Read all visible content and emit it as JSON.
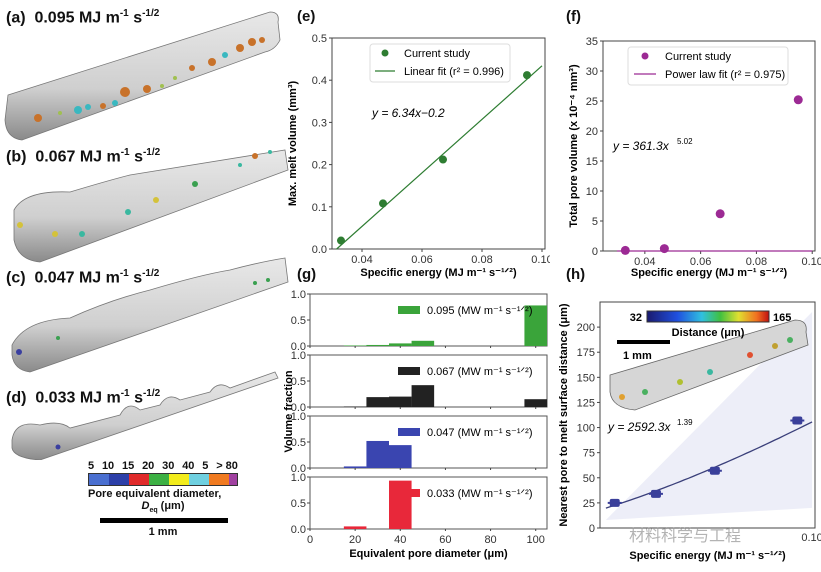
{
  "beads": [
    {
      "panel": "(a)",
      "energy": "0.095 MJ m",
      "exp1": "-1",
      "unit2": " s",
      "exp2": "-1/2"
    },
    {
      "panel": "(b)",
      "energy": "0.067 MJ m",
      "exp1": "-1",
      "unit2": " s",
      "exp2": "-1/2"
    },
    {
      "panel": "(c)",
      "energy": "0.047 MJ m",
      "exp1": "-1",
      "unit2": " s",
      "exp2": "-1/2"
    },
    {
      "panel": "(d)",
      "energy": "0.033 MJ m",
      "exp1": "-1",
      "unit2": " s",
      "exp2": "-1/2"
    }
  ],
  "pore_colorbar": {
    "ticks": [
      "5",
      "10",
      "15",
      "20",
      "30",
      "40",
      "5",
      "> 80"
    ],
    "colors": [
      "#4a6fd0",
      "#2c3fa8",
      "#e02a2a",
      "#3cb043",
      "#f2ec1c",
      "#6fd0e0",
      "#f07a20",
      "#a040a0"
    ],
    "label_line1": "Pore equivalent diameter,",
    "label_line2": "D",
    "label_sub": "eq",
    "label_unit": " (μm)",
    "scale_bar": "1 mm"
  },
  "chart_data": [
    {
      "id": "e",
      "panel": "(e)",
      "type": "scatter",
      "xlabel": "Specific energy (MJ m⁻¹ s⁻¹ᐟ²)",
      "ylabel": "Max. melt volume (mm³)",
      "xlim": [
        0.03,
        0.101
      ],
      "ylim": [
        0,
        0.5
      ],
      "xticks": [
        0.04,
        0.06,
        0.08,
        0.1
      ],
      "xtick_labels": [
        "0.04",
        "0.06",
        "0.08",
        "0.10"
      ],
      "yticks": [
        0,
        0.1,
        0.2,
        0.3,
        0.4,
        0.5
      ],
      "ytick_labels": [
        "0.0",
        "0.1",
        "0.2",
        "0.3",
        "0.4",
        "0.5"
      ],
      "color": "#2e7d32",
      "points": {
        "x": [
          0.033,
          0.047,
          0.067,
          0.095
        ],
        "y": [
          0.02,
          0.108,
          0.212,
          0.412
        ]
      },
      "fit": {
        "type": "linear",
        "slope": 6.34,
        "intercept": -0.2,
        "x_range": [
          0.0315,
          0.1
        ]
      },
      "legend": [
        "Current study",
        "Linear fit (r² = 0.996)"
      ],
      "legend_position": "top",
      "annotation": "y = 6.34x−0.2"
    },
    {
      "id": "f",
      "panel": "(f)",
      "type": "scatter",
      "xlabel": "Specific energy (MJ m⁻¹ s⁻¹ᐟ²)",
      "ylabel": "Total pore volume (x 10⁻⁴ mm³)",
      "xlim": [
        0.025,
        0.101
      ],
      "ylim": [
        0,
        35
      ],
      "xticks": [
        0.04,
        0.06,
        0.08,
        0.1
      ],
      "xtick_labels": [
        "0.04",
        "0.06",
        "0.08",
        "0.10"
      ],
      "yticks": [
        0,
        5,
        10,
        15,
        20,
        25,
        30,
        35
      ],
      "ytick_labels": [
        "0",
        "5",
        "10",
        "15",
        "20",
        "25",
        "30",
        "35"
      ],
      "color": "#9c2a94",
      "points": {
        "x": [
          0.033,
          0.047,
          0.067,
          0.095
        ],
        "y": [
          0.1,
          0.4,
          6.2,
          25.2
        ]
      },
      "fit": {
        "type": "power",
        "a": 361.3,
        "b": 5.02,
        "x_range": [
          0.03,
          0.1
        ]
      },
      "legend": [
        "Current study",
        "Power law fit (r² = 0.975)"
      ],
      "legend_position": "top",
      "annotation_main": "y = 361.3x",
      "annotation_exp": "5.02"
    },
    {
      "id": "g",
      "panel": "(g)",
      "type": "bar",
      "xlabel": "Equivalent pore diameter (μm)",
      "ylabel": "Volume fraction",
      "xlim": [
        0,
        105
      ],
      "xticks": [
        0,
        20,
        40,
        60,
        80,
        100
      ],
      "xtick_labels": [
        "0",
        "20",
        "40",
        "60",
        "80",
        "100"
      ],
      "ylim": [
        0,
        1.0
      ],
      "yticks": [
        0,
        0.5,
        1.0
      ],
      "ytick_labels": [
        "0.0",
        "0.5",
        "1.0"
      ],
      "bin_edges": [
        15,
        25,
        35,
        45,
        55,
        95,
        105
      ],
      "series": [
        {
          "name": "0.095 (MW m⁻¹ s⁻¹ᐟ²)",
          "color": "#3aa43a",
          "bins": [
            [
              15,
              25,
              0.01
            ],
            [
              25,
              35,
              0.02
            ],
            [
              35,
              45,
              0.05
            ],
            [
              45,
              55,
              0.1
            ],
            [
              95,
              105,
              0.78
            ]
          ]
        },
        {
          "name": "0.067 (MW m⁻¹ s⁻¹ᐟ²)",
          "color": "#222222",
          "bins": [
            [
              15,
              25,
              0.01
            ],
            [
              25,
              35,
              0.19
            ],
            [
              35,
              45,
              0.2
            ],
            [
              45,
              55,
              0.42
            ],
            [
              95,
              105,
              0.15
            ]
          ]
        },
        {
          "name": "0.047 (MW m⁻¹ s⁻¹ᐟ²)",
          "color": "#3a45b0",
          "bins": [
            [
              15,
              25,
              0.03
            ],
            [
              25,
              35,
              0.52
            ],
            [
              35,
              45,
              0.44
            ]
          ]
        },
        {
          "name": "0.033 (MW m⁻¹ s⁻¹ᐟ²)",
          "color": "#e8283a",
          "bins": [
            [
              15,
              25,
              0.05
            ],
            [
              35,
              45,
              0.93
            ]
          ]
        }
      ]
    },
    {
      "id": "h",
      "panel": "(h)",
      "type": "scatter",
      "xlabel": "Specific energy (MJ m⁻¹ s⁻¹ᐟ²)",
      "ylabel": "Nearest pore to melt surface distance (μm)",
      "xlim": [
        0.028,
        0.101
      ],
      "ylim": [
        0,
        225
      ],
      "xticks": [
        0.1
      ],
      "xtick_labels": [
        "0.10"
      ],
      "yticks": [
        0,
        25,
        50,
        75,
        100,
        125,
        150,
        175,
        200
      ],
      "ytick_labels": [
        "0",
        "25",
        "50",
        "75",
        "100",
        "125",
        "150",
        "175",
        "200"
      ],
      "color": "#3a3f9a",
      "points": {
        "x": [
          0.033,
          0.047,
          0.067,
          0.095
        ],
        "y": [
          25,
          34,
          57,
          107
        ]
      },
      "fit": {
        "type": "power",
        "a": 2592.3,
        "b": 1.39,
        "x_range": [
          0.03,
          0.1
        ]
      },
      "annotation_main": "y = 2592.3x",
      "annotation_exp": "1.39",
      "inset": {
        "colorbar_min": "32",
        "colorbar_max": "165",
        "colorbar_label": "Distance (μm)",
        "scale_bar": "1 mm"
      },
      "watermark": "材料科学与工程"
    }
  ]
}
